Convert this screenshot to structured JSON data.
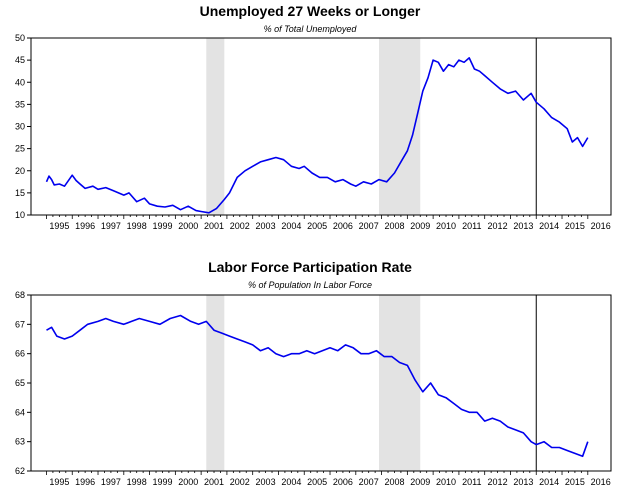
{
  "chart_data": [
    {
      "type": "line",
      "title": "Unemployed 27 Weeks or Longer",
      "subtitle": "% of Total Unemployed",
      "ylim": [
        10,
        50
      ],
      "yticks": [
        10,
        15,
        20,
        25,
        30,
        35,
        40,
        45,
        50
      ],
      "xlim": [
        1994.4,
        2016.9
      ],
      "xtick_labels": [
        "1995",
        "1996",
        "1997",
        "1998",
        "1999",
        "2000",
        "2001",
        "2002",
        "2003",
        "2004",
        "2005",
        "2006",
        "2007",
        "2008",
        "2009",
        "2010",
        "2011",
        "2012",
        "2013",
        "2014",
        "2015",
        "2016"
      ],
      "recessions": [
        [
          2001.2,
          2001.9
        ],
        [
          2007.9,
          2009.5
        ]
      ],
      "marker_line": 2014.0,
      "line_color": "#0000ee",
      "grid": false,
      "series": [
        {
          "x": [
            1995.0,
            1995.1,
            1995.2,
            1995.3,
            1995.5,
            1995.7,
            1996.0,
            1996.15,
            1996.3,
            1996.5,
            1996.8,
            1997.0,
            1997.3,
            1997.6,
            1998.0,
            1998.2,
            1998.5,
            1998.8,
            1999.0,
            1999.3,
            1999.6,
            1999.9,
            2000.2,
            2000.5,
            2000.8,
            2001.0,
            2001.3,
            2001.6,
            2001.9,
            2002.1,
            2002.4,
            2002.7,
            2003.0,
            2003.3,
            2003.6,
            2003.9,
            2004.2,
            2004.5,
            2004.8,
            2005.0,
            2005.3,
            2005.6,
            2005.9,
            2006.2,
            2006.5,
            2006.8,
            2007.0,
            2007.3,
            2007.6,
            2007.9,
            2008.2,
            2008.5,
            2008.8,
            2009.0,
            2009.2,
            2009.4,
            2009.6,
            2009.8,
            2010.0,
            2010.2,
            2010.4,
            2010.6,
            2010.8,
            2011.0,
            2011.2,
            2011.4,
            2011.6,
            2011.8,
            2012.0,
            2012.3,
            2012.6,
            2012.9,
            2013.2,
            2013.5,
            2013.8,
            2014.0,
            2014.3,
            2014.6,
            2014.9,
            2015.2,
            2015.4,
            2015.6,
            2015.8,
            2016.0
          ],
          "values": [
            17.5,
            18.8,
            18.0,
            16.8,
            17.0,
            16.5,
            19.0,
            17.8,
            17.0,
            16.0,
            16.5,
            15.8,
            16.2,
            15.5,
            14.5,
            15.0,
            13.0,
            13.8,
            12.5,
            12.0,
            11.8,
            12.2,
            11.2,
            12.0,
            11.0,
            10.8,
            10.5,
            11.5,
            13.5,
            15.0,
            18.5,
            20.0,
            21.0,
            22.0,
            22.5,
            23.0,
            22.5,
            21.0,
            20.5,
            21.0,
            19.5,
            18.5,
            18.5,
            17.5,
            18.0,
            17.0,
            16.5,
            17.5,
            17.0,
            18.0,
            17.5,
            19.5,
            22.5,
            24.5,
            28.0,
            33.0,
            38.0,
            41.0,
            45.0,
            44.5,
            42.5,
            44.0,
            43.5,
            45.0,
            44.5,
            45.5,
            43.0,
            42.5,
            41.5,
            40.0,
            38.5,
            37.5,
            38.0,
            36.0,
            37.5,
            35.5,
            34.0,
            32.0,
            31.0,
            29.5,
            26.5,
            27.5,
            25.5,
            27.5
          ]
        }
      ]
    },
    {
      "type": "line",
      "title": "Labor Force Participation Rate",
      "subtitle": "% of Population In Labor Force",
      "ylim": [
        62,
        68
      ],
      "yticks": [
        62,
        63,
        64,
        65,
        66,
        67,
        68
      ],
      "xlim": [
        1994.4,
        2016.9
      ],
      "xtick_labels": [
        "1995",
        "1996",
        "1997",
        "1998",
        "1999",
        "2000",
        "2001",
        "2002",
        "2003",
        "2004",
        "2005",
        "2006",
        "2007",
        "2008",
        "2009",
        "2010",
        "2011",
        "2012",
        "2013",
        "2014",
        "2015",
        "2016"
      ],
      "recessions": [
        [
          2001.2,
          2001.9
        ],
        [
          2007.9,
          2009.5
        ]
      ],
      "marker_line": 2014.0,
      "line_color": "#0000ee",
      "grid": false,
      "series": [
        {
          "x": [
            1995.0,
            1995.2,
            1995.4,
            1995.7,
            1996.0,
            1996.3,
            1996.6,
            1997.0,
            1997.3,
            1997.6,
            1998.0,
            1998.3,
            1998.6,
            1999.0,
            1999.4,
            1999.8,
            2000.2,
            2000.6,
            2000.9,
            2001.2,
            2001.5,
            2001.8,
            2002.1,
            2002.4,
            2002.7,
            2003.0,
            2003.3,
            2003.6,
            2003.9,
            2004.2,
            2004.5,
            2004.8,
            2005.1,
            2005.4,
            2005.7,
            2006.0,
            2006.3,
            2006.6,
            2006.9,
            2007.2,
            2007.5,
            2007.8,
            2008.1,
            2008.4,
            2008.7,
            2009.0,
            2009.3,
            2009.6,
            2009.9,
            2010.2,
            2010.5,
            2010.8,
            2011.1,
            2011.4,
            2011.7,
            2012.0,
            2012.3,
            2012.6,
            2012.9,
            2013.2,
            2013.5,
            2013.8,
            2014.0,
            2014.3,
            2014.6,
            2014.9,
            2015.2,
            2015.5,
            2015.8,
            2016.0
          ],
          "values": [
            66.8,
            66.9,
            66.6,
            66.5,
            66.6,
            66.8,
            67.0,
            67.1,
            67.2,
            67.1,
            67.0,
            67.1,
            67.2,
            67.1,
            67.0,
            67.2,
            67.3,
            67.1,
            67.0,
            67.1,
            66.8,
            66.7,
            66.6,
            66.5,
            66.4,
            66.3,
            66.1,
            66.2,
            66.0,
            65.9,
            66.0,
            66.0,
            66.1,
            66.0,
            66.1,
            66.2,
            66.1,
            66.3,
            66.2,
            66.0,
            66.0,
            66.1,
            65.9,
            65.9,
            65.7,
            65.6,
            65.1,
            64.7,
            65.0,
            64.6,
            64.5,
            64.3,
            64.1,
            64.0,
            64.0,
            63.7,
            63.8,
            63.7,
            63.5,
            63.4,
            63.3,
            63.0,
            62.9,
            63.0,
            62.8,
            62.8,
            62.7,
            62.6,
            62.5,
            63.0
          ]
        }
      ]
    }
  ]
}
